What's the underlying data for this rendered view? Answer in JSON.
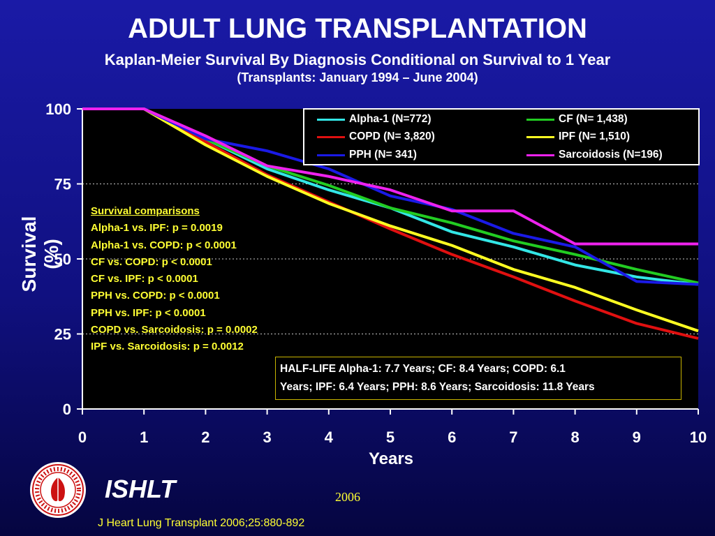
{
  "header": {
    "title": "ADULT LUNG TRANSPLANTATION",
    "subtitle": "Kaplan-Meier Survival By Diagnosis Conditional on Survival to 1 Year",
    "subtitle2": "(Transplants: January 1994 – June 2004)"
  },
  "comparisons": {
    "heading": "Survival comparisons",
    "lines": [
      "Alpha-1 vs. IPF: p = 0.0019",
      "Alpha-1 vs. COPD: p < 0.0001",
      "CF vs. COPD: p < 0.0001",
      "CF vs. IPF: p < 0.0001",
      "PPH vs. COPD: p < 0.0001",
      "PPH vs. IPF: p < 0.0001",
      "COPD vs. Sarcoidosis: p = 0.0002",
      "IPF vs. Sarcoidosis: p = 0.0012"
    ]
  },
  "halflife": {
    "line1": "HALF-LIFE   Alpha-1: 7.7 Years; CF: 8.4 Years; COPD: 6.1",
    "line2": "Years; IPF: 6.4 Years; PPH: 8.6 Years; Sarcoidosis: 11.8 Years"
  },
  "footer": {
    "org": "ISHLT",
    "year": "2006",
    "citation": "J Heart Lung Transplant 2006;25:880-892",
    "logo_icon": "ishlt-seal-icon"
  },
  "chart_data": {
    "type": "line",
    "title": "ADULT LUNG TRANSPLANTATION",
    "xlabel": "Years",
    "ylabel": "Survival (%)",
    "xlim": [
      0,
      10
    ],
    "ylim": [
      0,
      100
    ],
    "xticks": [
      "0",
      "1",
      "2",
      "3",
      "4",
      "5",
      "6",
      "7",
      "8",
      "9",
      "10"
    ],
    "yticks": [
      "0",
      "25",
      "50",
      "75",
      "100"
    ],
    "grid": "dotted horizontal at 25, 50, 75",
    "legend_position": "top-right",
    "background": "#000000",
    "series": [
      {
        "name": "Alpha-1 (N=772)",
        "color": "#33e6e6",
        "x": [
          0,
          1,
          2,
          3,
          4,
          5,
          6,
          7,
          8,
          9,
          10
        ],
        "y": [
          100,
          100,
          90,
          80,
          73,
          67,
          59,
          54,
          48,
          44,
          41.5
        ]
      },
      {
        "name": "CF (N= 1,438)",
        "color": "#22cc22",
        "x": [
          0,
          1,
          2,
          3,
          4,
          5,
          6,
          7,
          8,
          9,
          10
        ],
        "y": [
          100,
          100,
          90,
          81,
          74.5,
          67,
          62,
          56,
          51.5,
          46.5,
          42
        ]
      },
      {
        "name": "COPD (N= 3,820)",
        "color": "#e01010",
        "x": [
          0,
          1,
          2,
          3,
          4,
          5,
          6,
          7,
          8,
          9,
          10
        ],
        "y": [
          100,
          100,
          89,
          78,
          69,
          60,
          51.5,
          44,
          36,
          28.5,
          23.5
        ]
      },
      {
        "name": "IPF (N= 1,510)",
        "color": "#ffff22",
        "x": [
          0,
          1,
          2,
          3,
          4,
          5,
          6,
          7,
          8,
          9,
          10
        ],
        "y": [
          100,
          100,
          88,
          77.5,
          68.5,
          61,
          54.5,
          46.5,
          40.5,
          33,
          26
        ]
      },
      {
        "name": "PPH (N= 341)",
        "color": "#1a1ae6",
        "x": [
          0,
          1,
          2,
          3,
          4,
          5,
          6,
          7,
          8,
          9,
          10
        ],
        "y": [
          100,
          100,
          90,
          86,
          80,
          71,
          66.5,
          58.5,
          54,
          42.5,
          41.5
        ]
      },
      {
        "name": "Sarcoidosis (N=196)",
        "color": "#ee22ee",
        "x": [
          0,
          1,
          2,
          3,
          4,
          5,
          5.5,
          6,
          7,
          8,
          9,
          10
        ],
        "y": [
          100,
          100,
          91,
          81,
          77.5,
          73,
          69.5,
          66,
          66,
          55,
          55,
          55
        ]
      }
    ]
  }
}
